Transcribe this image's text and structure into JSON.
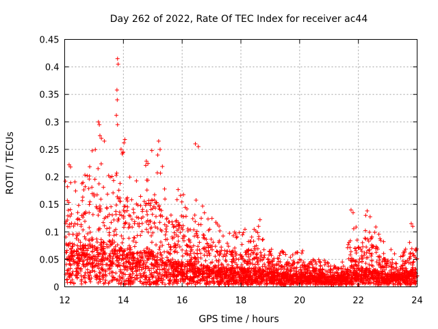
{
  "chart_data": {
    "type": "scatter",
    "title": "Day 262 of 2022, Rate Of TEC Index for receiver ac44",
    "xlabel": "GPS time / hours",
    "ylabel": "ROTI / TECUs",
    "xlim": [
      12,
      24
    ],
    "ylim": [
      0,
      0.45
    ],
    "x_ticks": [
      12,
      14,
      16,
      18,
      20,
      22,
      24
    ],
    "x_tick_labels": [
      "12",
      "14",
      "16",
      "18",
      "20",
      "22",
      "24"
    ],
    "y_ticks": [
      0,
      0.05,
      0.1,
      0.15,
      0.2,
      0.25,
      0.3,
      0.35,
      0.4,
      0.45
    ],
    "y_tick_labels": [
      "0",
      "0.05",
      "0.1",
      "0.15",
      "0.2",
      "0.25",
      "0.3",
      "0.35",
      "0.4",
      "0.45"
    ],
    "grid": true,
    "marker": "+",
    "color": "#ff0000",
    "series": [
      {
        "name": "ROTI",
        "envelope": {
          "hours": [
            12.0,
            12.5,
            13.0,
            13.5,
            14.0,
            14.5,
            15.0,
            15.5,
            16.0,
            16.5,
            17.0,
            17.5,
            18.0,
            18.5,
            19.0,
            19.5,
            20.0,
            20.5,
            21.0,
            21.5,
            22.0,
            22.5,
            23.0,
            23.5,
            24.0
          ],
          "upper_roti": [
            0.22,
            0.18,
            0.26,
            0.21,
            0.26,
            0.23,
            0.26,
            0.2,
            0.18,
            0.16,
            0.13,
            0.1,
            0.1,
            0.12,
            0.07,
            0.07,
            0.07,
            0.05,
            0.05,
            0.05,
            0.14,
            0.13,
            0.07,
            0.06,
            0.11
          ],
          "typical_roti": [
            0.08,
            0.07,
            0.08,
            0.08,
            0.07,
            0.06,
            0.06,
            0.05,
            0.04,
            0.04,
            0.035,
            0.03,
            0.03,
            0.03,
            0.025,
            0.02,
            0.02,
            0.02,
            0.015,
            0.02,
            0.03,
            0.03,
            0.02,
            0.02,
            0.03
          ]
        },
        "highlights": [
          {
            "x": 13.8,
            "y": 0.415
          },
          {
            "x": 13.82,
            "y": 0.405
          },
          {
            "x": 13.78,
            "y": 0.358
          },
          {
            "x": 13.79,
            "y": 0.34
          },
          {
            "x": 13.76,
            "y": 0.312
          },
          {
            "x": 13.8,
            "y": 0.295
          },
          {
            "x": 13.15,
            "y": 0.3
          },
          {
            "x": 13.18,
            "y": 0.295
          },
          {
            "x": 13.2,
            "y": 0.275
          },
          {
            "x": 13.25,
            "y": 0.27
          },
          {
            "x": 13.35,
            "y": 0.265
          },
          {
            "x": 14.05,
            "y": 0.268
          },
          {
            "x": 14.02,
            "y": 0.262
          },
          {
            "x": 15.2,
            "y": 0.265
          },
          {
            "x": 15.25,
            "y": 0.25
          },
          {
            "x": 16.45,
            "y": 0.26
          },
          {
            "x": 16.55,
            "y": 0.255
          },
          {
            "x": 12.15,
            "y": 0.222
          },
          {
            "x": 12.2,
            "y": 0.218
          },
          {
            "x": 21.75,
            "y": 0.14
          },
          {
            "x": 21.82,
            "y": 0.135
          },
          {
            "x": 22.3,
            "y": 0.138
          },
          {
            "x": 22.25,
            "y": 0.13
          },
          {
            "x": 23.8,
            "y": 0.115
          },
          {
            "x": 23.85,
            "y": 0.11
          },
          {
            "x": 18.65,
            "y": 0.122
          },
          {
            "x": 18.6,
            "y": 0.11
          }
        ]
      }
    ]
  }
}
